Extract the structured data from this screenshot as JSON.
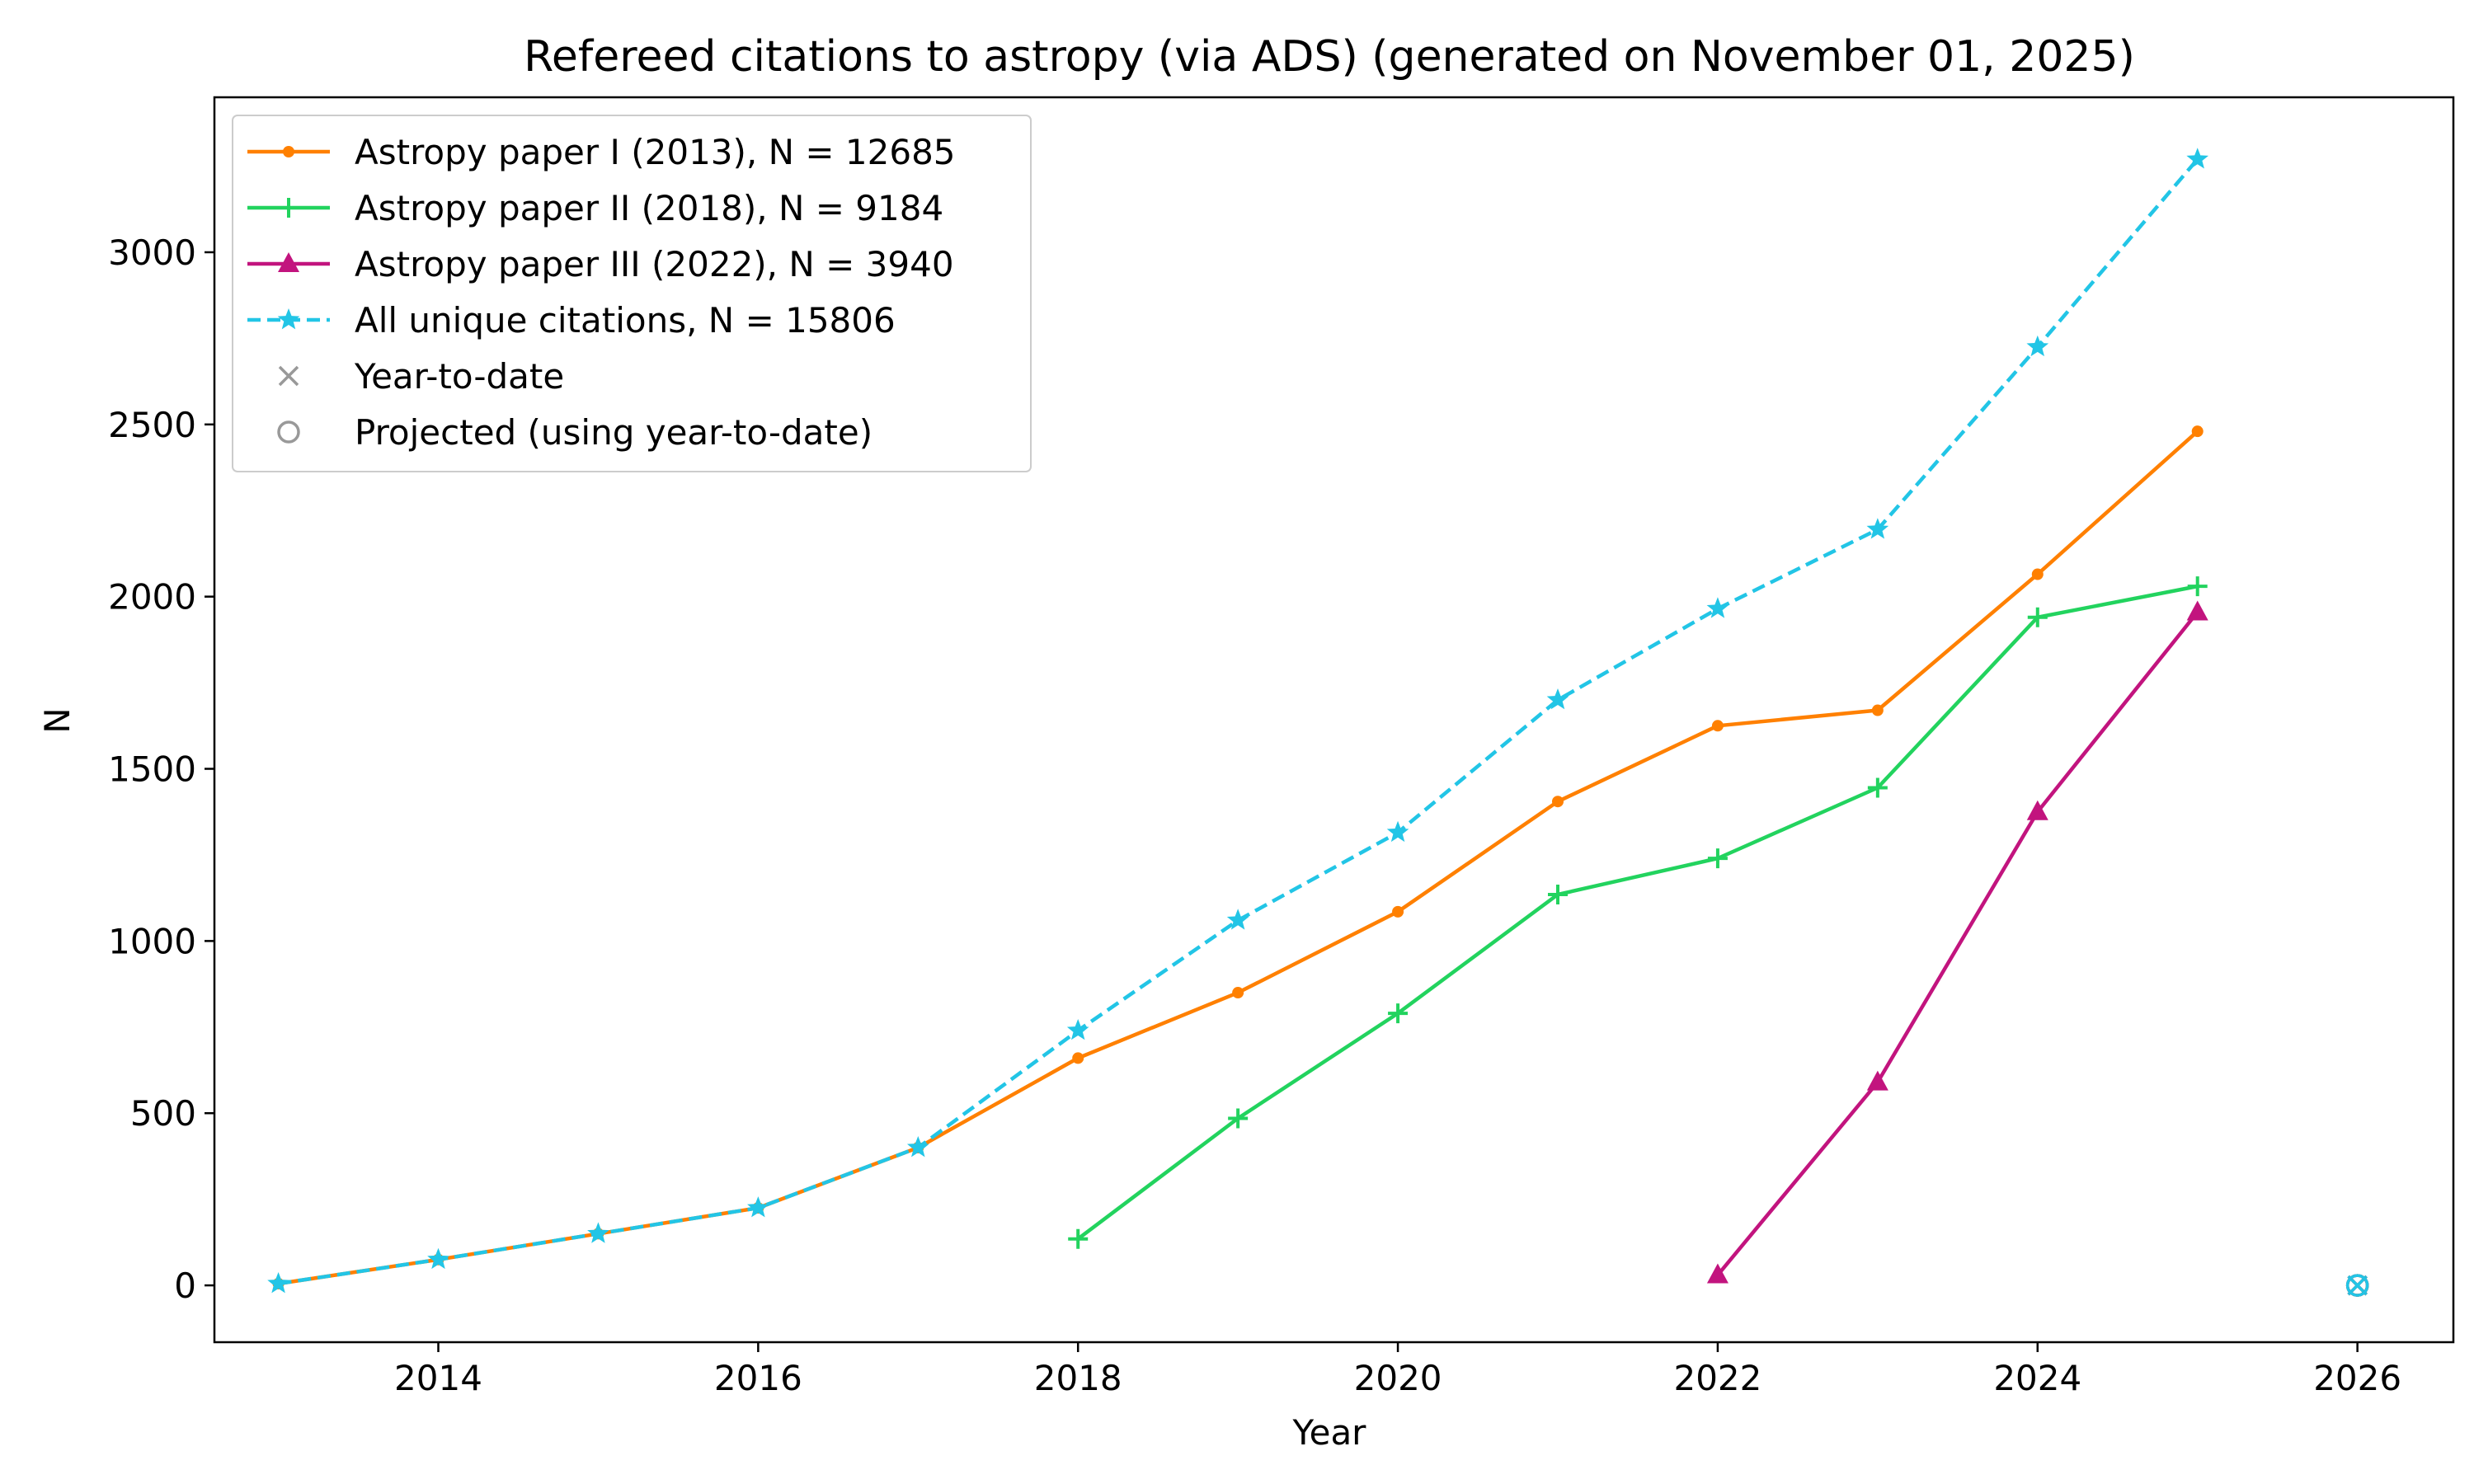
{
  "chart_data": {
    "type": "line",
    "title": "Refereed citations to astropy (via ADS) (generated on November 01, 2025)",
    "xlabel": "Year",
    "ylabel": "N",
    "xlim": [
      2012.6,
      2026.6
    ],
    "ylim": [
      -165,
      3450
    ],
    "x_ticks": [
      2014,
      2016,
      2018,
      2020,
      2022,
      2024,
      2026
    ],
    "y_ticks": [
      0,
      500,
      1000,
      1500,
      2000,
      2500,
      3000
    ],
    "grid": false,
    "legend_position": "top-left",
    "series": [
      {
        "name": "Astropy paper I (2013), N = 12685",
        "color": "#ff8000",
        "marker": "dot",
        "linestyle": "solid",
        "x": [
          2013,
          2014,
          2015,
          2016,
          2017,
          2018,
          2019,
          2020,
          2021,
          2022,
          2023,
          2024,
          2025
        ],
        "values": [
          5,
          75,
          150,
          225,
          400,
          660,
          850,
          1085,
          1405,
          1625,
          1670,
          2065,
          2480
        ]
      },
      {
        "name": "Astropy paper II (2018), N = 9184",
        "color": "#22d35e",
        "marker": "plus",
        "linestyle": "solid",
        "x": [
          2018,
          2019,
          2020,
          2021,
          2022,
          2023,
          2024,
          2025
        ],
        "values": [
          135,
          485,
          790,
          1135,
          1240,
          1445,
          1940,
          2030
        ]
      },
      {
        "name": "Astropy paper III (2022), N = 3940",
        "color": "#c2147e",
        "marker": "triangle",
        "linestyle": "solid",
        "x": [
          2022,
          2023,
          2024,
          2025
        ],
        "values": [
          30,
          590,
          1375,
          1955
        ]
      },
      {
        "name": "All unique citations, N = 15806",
        "color": "#22c5e6",
        "marker": "star",
        "linestyle": "dashed",
        "x": [
          2013,
          2014,
          2015,
          2016,
          2017,
          2018,
          2019,
          2020,
          2021,
          2022,
          2023,
          2024,
          2025
        ],
        "values": [
          5,
          75,
          150,
          225,
          400,
          740,
          1060,
          1315,
          1700,
          1965,
          2195,
          2725,
          3270
        ]
      }
    ],
    "year_to_date": {
      "name": "Year-to-date",
      "color": "#999999",
      "marker": "x",
      "points": [
        {
          "x": 2026,
          "y": 0,
          "color": "#ff8000"
        },
        {
          "x": 2026,
          "y": 0,
          "color": "#22d35e"
        },
        {
          "x": 2026,
          "y": 0,
          "color": "#c2147e"
        },
        {
          "x": 2026,
          "y": 0,
          "color": "#22c5e6"
        }
      ]
    },
    "projected": {
      "name": "Projected (using year-to-date)",
      "color": "#999999",
      "marker": "circle",
      "points": [
        {
          "x": 2026,
          "y": 0,
          "color": "#ff8000"
        },
        {
          "x": 2026,
          "y": 0,
          "color": "#22d35e"
        },
        {
          "x": 2026,
          "y": 0,
          "color": "#c2147e"
        },
        {
          "x": 2026,
          "y": 0,
          "color": "#22c5e6"
        }
      ]
    }
  }
}
